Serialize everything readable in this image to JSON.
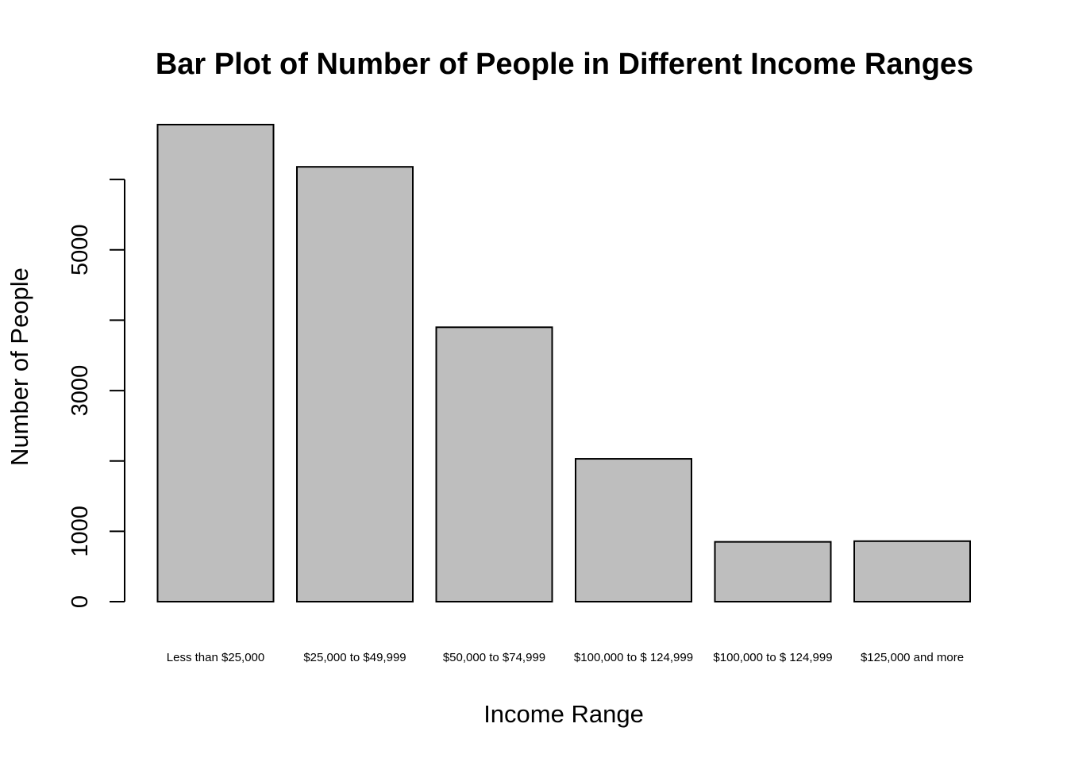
{
  "chart_data": {
    "type": "bar",
    "title": "Bar Plot of Number of People in Different Income Ranges",
    "xlabel": "Income Range",
    "ylabel": "Number of People",
    "categories": [
      "Less than $25,000",
      "$25,000 to $49,999",
      "$50,000 to $74,999",
      "$100,000 to $ 124,999",
      "$100,000 to $ 124,999",
      "$125,000 and more"
    ],
    "values": [
      6780,
      6180,
      3900,
      2030,
      850,
      860
    ],
    "ylim": [
      0,
      6780
    ],
    "yticks": [
      0,
      1000,
      2000,
      3000,
      4000,
      5000,
      6000
    ],
    "yticks_labeled": [
      "0",
      "1000",
      "3000",
      "5000"
    ],
    "bar_color": "#bebebe",
    "grid": false,
    "legend": "none"
  }
}
